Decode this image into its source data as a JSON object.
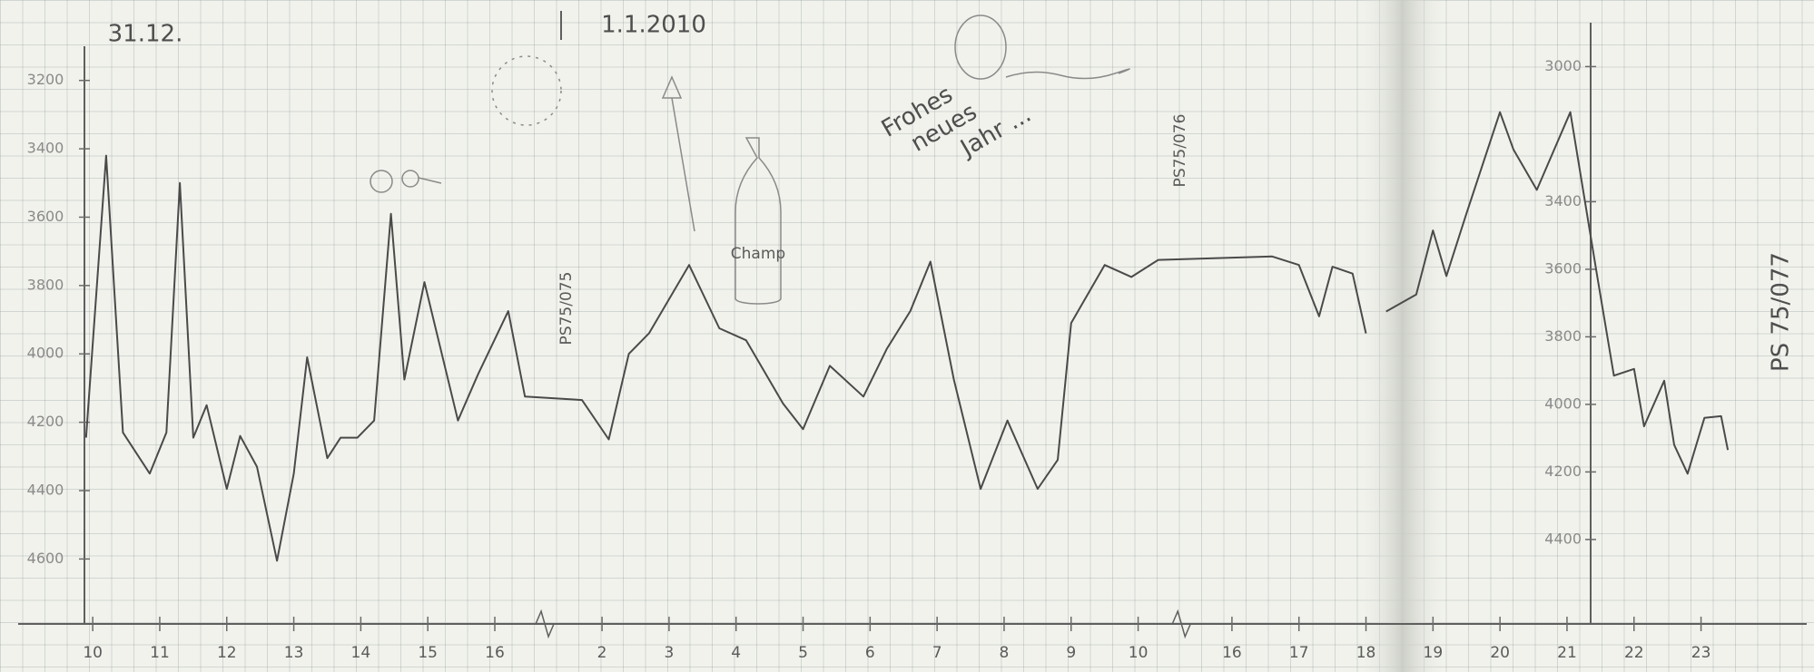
{
  "chart_data": {
    "type": "line",
    "annotations": {
      "date_start": "31.12.",
      "date_new_year": "1.1.2010",
      "station_1": "PS75/075",
      "station_2": "PS75/076",
      "station_3": "PS 75/077",
      "greeting": [
        "Frohes",
        "neues",
        "Jahr ..."
      ],
      "bottle": "Champ"
    },
    "xlim": [
      9.7,
      47.9
    ],
    "xbreaks": [
      [
        16.5,
        25.5
      ],
      [
        34.4,
        39.6
      ]
    ],
    "xticks": [
      10,
      11,
      12,
      13,
      14,
      15,
      16,
      {
        "value": 26,
        "label": "2"
      },
      {
        "value": 27,
        "label": "3"
      },
      {
        "value": 28,
        "label": "4"
      },
      {
        "value": 29,
        "label": "5"
      },
      {
        "value": 30,
        "label": "6"
      },
      {
        "value": 31,
        "label": "7"
      },
      {
        "value": 32,
        "label": "8"
      },
      {
        "value": 33,
        "label": "9"
      },
      {
        "value": 34,
        "label": "10"
      },
      {
        "value": 40,
        "label": "16"
      },
      {
        "value": 41,
        "label": "17"
      },
      {
        "value": 42,
        "label": "18"
      },
      {
        "value": 43,
        "label": "19"
      },
      {
        "value": 44,
        "label": "20"
      },
      {
        "value": 45,
        "label": "21"
      },
      {
        "value": 46,
        "label": "22"
      },
      {
        "value": 47,
        "label": "23"
      }
    ],
    "ylim": [
      3100,
      4790
    ],
    "y_inverted": true,
    "yticks": [
      3200,
      3400,
      3600,
      3800,
      4000,
      4200,
      4400,
      4600
    ],
    "y2lim": [
      2870,
      4650
    ],
    "y2ticks": [
      3000,
      3400,
      3600,
      3800,
      4000,
      4200,
      4400
    ],
    "series": [
      {
        "color": "#4a4a4a",
        "x": [
          9.9,
          10.2,
          10.45,
          10.85,
          11.1,
          11.3,
          11.5,
          11.7,
          12.0,
          12.2,
          12.45,
          12.75,
          13.0,
          13.2,
          13.5,
          13.7,
          13.95,
          14.2,
          14.45,
          14.65,
          14.95,
          15.45,
          15.75,
          16.2,
          16.45,
          25.7,
          26.1,
          26.4,
          26.7,
          27.3,
          27.75,
          28.15,
          28.7,
          29.0,
          29.4,
          29.9,
          30.25,
          30.6,
          30.9,
          31.25,
          31.65,
          32.05,
          32.5,
          32.8,
          33.0,
          33.5,
          33.9,
          34.3,
          40.6,
          41.0,
          41.3,
          41.5,
          41.8,
          42.0
        ],
        "values": [
          4245,
          3420,
          4230,
          4350,
          4230,
          3500,
          4245,
          4150,
          4395,
          4240,
          4330,
          4605,
          4350,
          4010,
          4305,
          4245,
          4245,
          4195,
          3590,
          4075,
          3790,
          4195,
          4060,
          3875,
          4125,
          4135,
          4250,
          4000,
          3940,
          3740,
          3925,
          3960,
          4145,
          4220,
          4035,
          4125,
          3985,
          3875,
          3730,
          4075,
          4395,
          4195,
          4395,
          4310,
          3910,
          3740,
          3775,
          3725,
          3715,
          3740,
          3890,
          3745,
          3765,
          3940
        ]
      },
      {
        "color": "#4a4a4a",
        "axis": "y2",
        "x": [
          42.3,
          42.75,
          43.0,
          43.2,
          43.5,
          44.0,
          44.2,
          44.55,
          45.05,
          45.45,
          45.7,
          46.0,
          46.15,
          46.45,
          46.6,
          46.8,
          47.05,
          47.3,
          47.4
        ],
        "values": [
          3725,
          3675,
          3485,
          3620,
          3435,
          3135,
          3245,
          3365,
          3135,
          3620,
          3915,
          3895,
          4065,
          3930,
          4120,
          4205,
          4040,
          4035,
          4135
        ]
      }
    ]
  }
}
